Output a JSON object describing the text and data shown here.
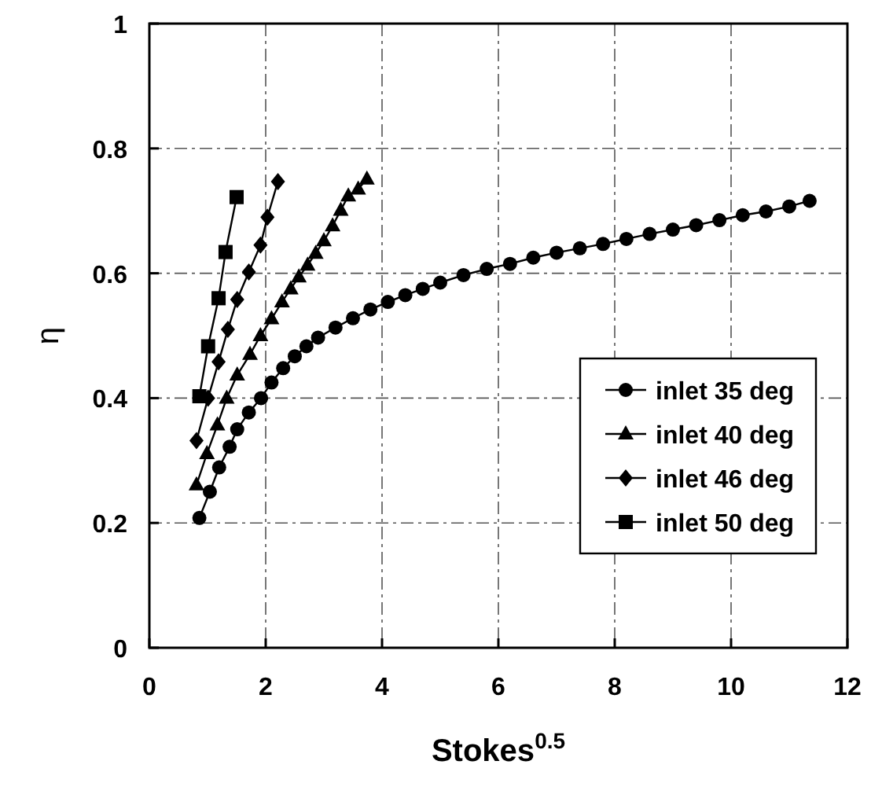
{
  "chart_data": {
    "type": "line",
    "xlabel": "Stokes$^{0.5}$",
    "ylabel": "η",
    "xlim": [
      0,
      12
    ],
    "xticks": [
      0,
      2,
      4,
      6,
      8,
      10,
      12
    ],
    "ylim": [
      0,
      1
    ],
    "yticks": [
      0,
      0.2,
      0.4,
      0.6,
      0.8,
      1
    ],
    "grid": true,
    "legend": "bottom right",
    "line_style": "solid",
    "series": [
      {
        "name": "inlet 35 deg",
        "color": "#000000",
        "marker": "circle",
        "x": [
          0.86,
          1.04,
          1.2,
          1.38,
          1.51,
          1.71,
          1.92,
          2.1,
          2.3,
          2.5,
          2.7,
          2.9,
          3.2,
          3.5,
          3.8,
          4.1,
          4.4,
          4.7,
          5.0,
          5.4,
          5.8,
          6.2,
          6.6,
          7.0,
          7.4,
          7.8,
          8.2,
          8.6,
          9.0,
          9.4,
          9.8,
          10.2,
          10.6,
          11.0,
          11.35
        ],
        "values": [
          0.208,
          0.25,
          0.289,
          0.322,
          0.35,
          0.377,
          0.4,
          0.425,
          0.448,
          0.467,
          0.483,
          0.497,
          0.513,
          0.528,
          0.542,
          0.554,
          0.565,
          0.575,
          0.585,
          0.597,
          0.607,
          0.615,
          0.625,
          0.633,
          0.64,
          0.647,
          0.655,
          0.663,
          0.67,
          0.677,
          0.685,
          0.693,
          0.699,
          0.707,
          0.716
        ]
      },
      {
        "name": "inlet 40 deg",
        "color": "#000000",
        "marker": "triangle",
        "x": [
          0.81,
          0.99,
          1.17,
          1.33,
          1.51,
          1.73,
          1.91,
          2.1,
          2.28,
          2.43,
          2.57,
          2.72,
          2.86,
          3.0,
          3.15,
          3.29,
          3.42,
          3.59,
          3.74
        ],
        "values": [
          0.261,
          0.311,
          0.357,
          0.4,
          0.437,
          0.47,
          0.5,
          0.527,
          0.554,
          0.575,
          0.594,
          0.613,
          0.632,
          0.652,
          0.676,
          0.701,
          0.724,
          0.735,
          0.751
        ]
      },
      {
        "name": "inlet 46 deg",
        "color": "#000000",
        "marker": "diamond",
        "x": [
          0.81,
          1.01,
          1.19,
          1.35,
          1.51,
          1.71,
          1.91,
          2.03,
          2.21
        ],
        "values": [
          0.332,
          0.4,
          0.458,
          0.51,
          0.558,
          0.602,
          0.645,
          0.69,
          0.747
        ]
      },
      {
        "name": "inlet 50 deg",
        "color": "#000000",
        "marker": "square",
        "x": [
          0.86,
          1.01,
          1.19,
          1.31,
          1.5
        ],
        "values": [
          0.403,
          0.483,
          0.56,
          0.634,
          0.722
        ]
      }
    ]
  }
}
